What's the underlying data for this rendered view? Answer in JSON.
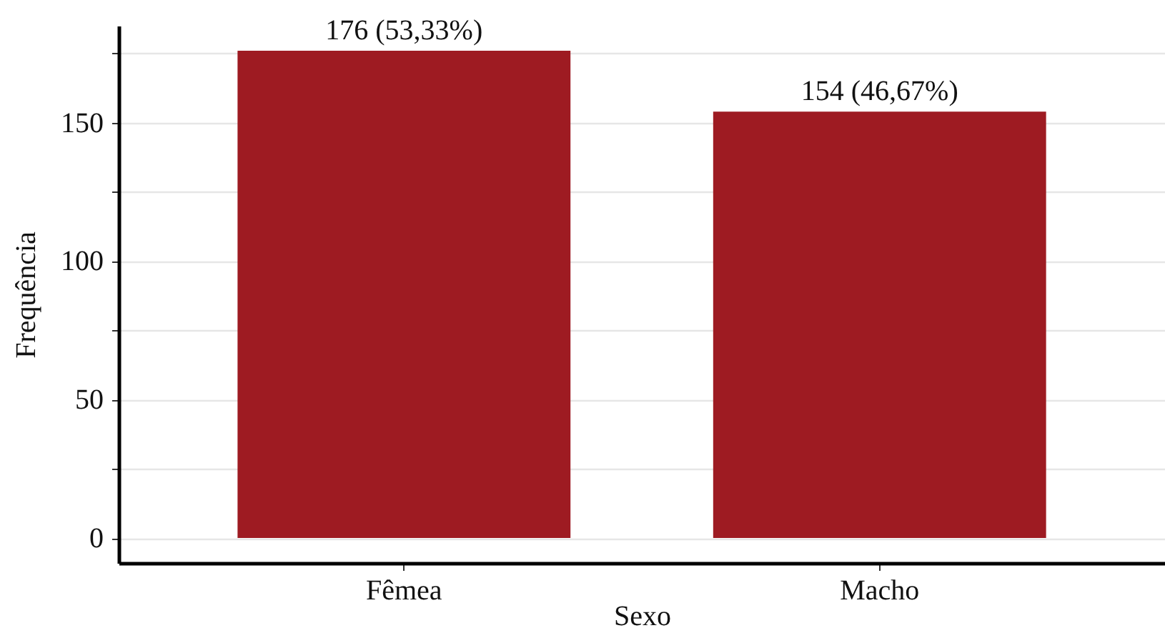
{
  "chart_data": {
    "type": "bar",
    "xlabel": "Sexo",
    "ylabel": "Frequência",
    "categories": [
      "Fêmea",
      "Macho"
    ],
    "values": [
      176,
      154
    ],
    "value_labels": [
      "176 (53,33%)",
      "154 (46,67%)"
    ],
    "color": "#9e1b22",
    "ylim": [
      -9,
      185
    ],
    "yticks": [
      0,
      {
        "value": 25,
        "label": null
      },
      50,
      {
        "value": 75,
        "label": null
      },
      100,
      {
        "value": 125,
        "label": null
      },
      150,
      {
        "value": 175,
        "label": null
      }
    ],
    "grid": "y"
  }
}
